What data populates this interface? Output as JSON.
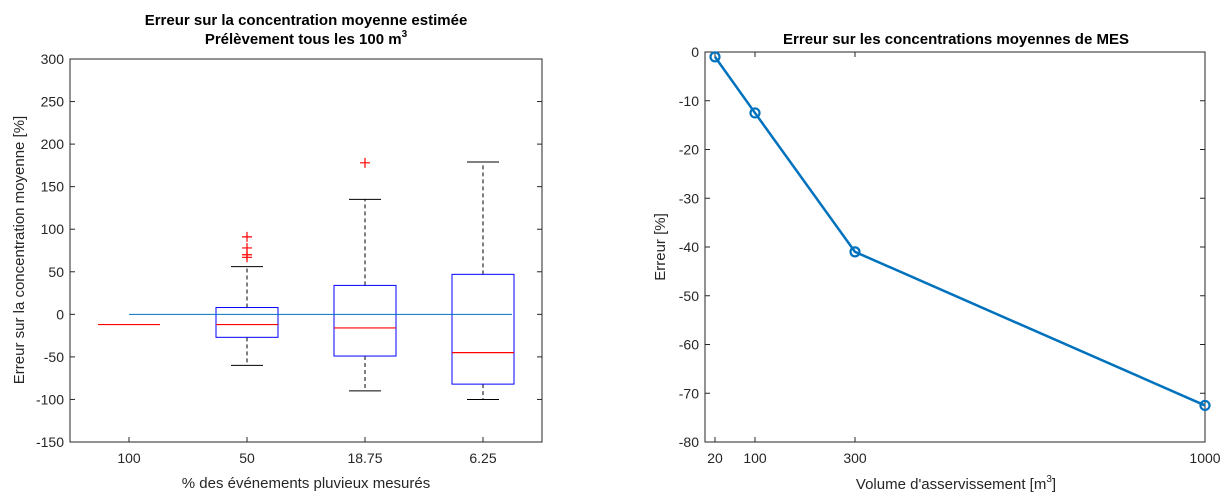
{
  "chart_data": [
    {
      "type": "box",
      "title_line1": "Erreur sur la concentration moyenne estimée",
      "title_line2": "Prélèvement tous les 100 m",
      "title_sup": "3",
      "xlabel": "% des événements pluvieux mesurés",
      "ylabel": "Erreur sur la concentration moyenne [%]",
      "ylim": [
        -150,
        300
      ],
      "yticks": [
        -150,
        -100,
        -50,
        0,
        50,
        100,
        150,
        200,
        250,
        300
      ],
      "categories": [
        "100",
        "50",
        "18.75",
        "6.25"
      ],
      "boxes": [
        {
          "category": "100",
          "q1": -12,
          "median": -12,
          "q3": -12,
          "whisker_low": -12,
          "whisker_high": -12,
          "outliers": []
        },
        {
          "category": "50",
          "q1": -27,
          "median": -12,
          "q3": 8,
          "whisker_low": -60,
          "whisker_high": 56,
          "outliers": [
            67,
            70,
            78,
            91
          ]
        },
        {
          "category": "18.75",
          "q1": -49,
          "median": -16,
          "q3": 34,
          "whisker_low": -90,
          "whisker_high": 135,
          "outliers": [
            178
          ]
        },
        {
          "category": "6.25",
          "q1": -82,
          "median": -45,
          "q3": 47,
          "whisker_low": -100,
          "whisker_high": 179,
          "outliers": []
        }
      ],
      "reference_line": {
        "y": 0,
        "x_from_category": 1,
        "x_to_category": 4.5
      },
      "colors": {
        "box": "#0000ff",
        "median": "#ff0000",
        "whisker": "#000000",
        "outlier": "#ff0000",
        "reference": "#0072bd"
      }
    },
    {
      "type": "line",
      "title": "Erreur sur les concentrations moyennes de MES",
      "xlabel": "Volume d'asservissement [m",
      "xlabel_sup": "3",
      "xlabel_end": "]",
      "ylabel": "Erreur [%]",
      "xlim": [
        0,
        1000
      ],
      "ylim": [
        -80,
        0
      ],
      "xticks": [
        20,
        100,
        300,
        1000
      ],
      "yticks": [
        -80,
        -70,
        -60,
        -50,
        -40,
        -30,
        -20,
        -10,
        0
      ],
      "x": [
        20,
        100,
        300,
        1000
      ],
      "y": [
        -1,
        -12.5,
        -41,
        -72.5
      ],
      "colors": {
        "line": "#0072bd"
      }
    }
  ]
}
